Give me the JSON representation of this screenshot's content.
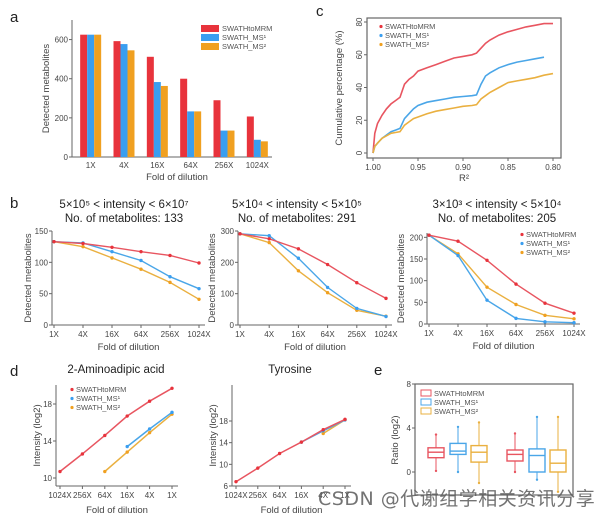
{
  "colors": {
    "swath_to_mrm": "#e8333c",
    "swath_ms1": "#3a9ef0",
    "swath_ms2": "#f0a020",
    "swath_to_mrm_line": "#e85560",
    "swath_ms1_line": "#4aa6e8",
    "swath_ms2_line": "#eab040",
    "axis": "#666666"
  },
  "series_names": [
    "SWATHtoMRM",
    "SWATH_MS¹",
    "SWATH_MS²"
  ],
  "watermark": "CSDN @代谢组学相关资讯分享",
  "chart_data": [
    {
      "panel": "a",
      "type": "bar",
      "title": "",
      "xlabel": "Fold of dilution",
      "ylabel": "Detected metabolites",
      "ylim": [
        0,
        700
      ],
      "yticks": [
        0,
        200,
        400,
        600
      ],
      "categories": [
        "1X",
        "4X",
        "16X",
        "64X",
        "256X",
        "1024X"
      ],
      "legend": "top-right",
      "series": [
        {
          "name": "SWATHtoMRM",
          "values": [
            625,
            592,
            512,
            400,
            290,
            207
          ]
        },
        {
          "name": "SWATH_MS¹",
          "values": [
            625,
            577,
            383,
            233,
            135,
            88
          ]
        },
        {
          "name": "SWATH_MS²",
          "values": [
            625,
            545,
            363,
            233,
            135,
            80
          ]
        }
      ]
    },
    {
      "panel": "c",
      "type": "line",
      "title": "",
      "xlabel": "R²",
      "ylabel": "Cumulative percentage (%)",
      "xlim": [
        1.0,
        0.8
      ],
      "ylim": [
        0,
        80
      ],
      "xticks": [
        "1.00",
        "0.95",
        "0.90",
        "0.85",
        "0.80"
      ],
      "yticks": [
        0,
        20,
        40,
        60,
        80
      ],
      "legend": "top-left",
      "series": [
        {
          "name": "SWATHtoMRM",
          "x": [
            1.0,
            0.998,
            0.995,
            0.99,
            0.985,
            0.98,
            0.975,
            0.97,
            0.965,
            0.96,
            0.955,
            0.95,
            0.94,
            0.93,
            0.92,
            0.91,
            0.9,
            0.89,
            0.885,
            0.88,
            0.875,
            0.87,
            0.86,
            0.85,
            0.84,
            0.83,
            0.82,
            0.81,
            0.8
          ],
          "y": [
            0,
            12,
            18,
            23,
            27,
            30,
            32,
            34,
            42,
            45,
            47,
            50,
            52,
            54,
            56,
            58,
            59,
            60,
            61,
            64,
            67,
            69,
            72,
            74,
            75.5,
            77,
            78,
            79,
            79
          ]
        },
        {
          "name": "SWATH_MS¹",
          "x": [
            1.0,
            0.998,
            0.995,
            0.99,
            0.985,
            0.98,
            0.975,
            0.97,
            0.965,
            0.96,
            0.955,
            0.95,
            0.94,
            0.93,
            0.92,
            0.91,
            0.9,
            0.89,
            0.885,
            0.88,
            0.875,
            0.87,
            0.86,
            0.85,
            0.84,
            0.83,
            0.82,
            0.81
          ],
          "y": [
            0,
            4,
            6,
            9,
            11,
            13,
            14,
            15,
            21,
            24,
            27,
            29,
            31,
            32,
            33,
            34,
            34.5,
            35,
            35.5,
            42,
            47,
            49,
            52,
            54,
            55.5,
            56.5,
            57.5,
            58.5
          ]
        },
        {
          "name": "SWATH_MS²",
          "x": [
            1.0,
            0.998,
            0.995,
            0.99,
            0.985,
            0.98,
            0.975,
            0.97,
            0.965,
            0.96,
            0.955,
            0.95,
            0.94,
            0.93,
            0.92,
            0.91,
            0.9,
            0.89,
            0.885,
            0.88,
            0.875,
            0.87,
            0.86,
            0.85,
            0.84,
            0.83,
            0.82,
            0.81,
            0.8
          ],
          "y": [
            0,
            4,
            6,
            9,
            10.5,
            12,
            12.5,
            13,
            17,
            19,
            21,
            22,
            24,
            25.5,
            26.5,
            27.5,
            28.5,
            29,
            29.5,
            33,
            35,
            37,
            40,
            43,
            44,
            45,
            46,
            47.5,
            48.5
          ]
        }
      ]
    },
    {
      "panel": "b1",
      "type": "line",
      "title": "5×10⁵ < intensity < 6×10⁷",
      "subtitle": "No. of metabolites: 133",
      "xlabel": "Fold of dilution",
      "ylabel": "Detected metabolites",
      "ylim": [
        0,
        150
      ],
      "yticks": [
        0,
        50,
        100,
        150
      ],
      "categories": [
        "1X",
        "4X",
        "16X",
        "64X",
        "256X",
        "1024X"
      ],
      "series": [
        {
          "name": "SWATHtoMRM",
          "values": [
            133,
            130,
            124,
            117,
            111,
            99
          ]
        },
        {
          "name": "SWATH_MS¹",
          "values": [
            133,
            131,
            117,
            103,
            77,
            58
          ]
        },
        {
          "name": "SWATH_MS²",
          "values": [
            133,
            125,
            107,
            89,
            68,
            41
          ]
        }
      ]
    },
    {
      "panel": "b2",
      "type": "line",
      "title": "5×10⁴ < intensity < 5×10⁵",
      "subtitle": "No. of metabolites: 291",
      "xlabel": "Fold of dilution",
      "ylabel": "Detected metabolites",
      "ylim": [
        0,
        300
      ],
      "yticks": [
        0,
        100,
        200,
        300
      ],
      "categories": [
        "1X",
        "4X",
        "16X",
        "64X",
        "256X",
        "1024X"
      ],
      "series": [
        {
          "name": "SWATHtoMRM",
          "values": [
            291,
            275,
            243,
            193,
            135,
            85
          ]
        },
        {
          "name": "SWATH_MS¹",
          "values": [
            291,
            285,
            213,
            120,
            53,
            27
          ]
        },
        {
          "name": "SWATH_MS²",
          "values": [
            291,
            263,
            173,
            103,
            47,
            28
          ]
        }
      ]
    },
    {
      "panel": "b3",
      "type": "line",
      "title": "3×10³ < intensity < 5×10⁴",
      "subtitle": "No. of metabolites: 205",
      "xlabel": "Fold of dilution",
      "ylabel": "Detected metabolites",
      "ylim": [
        0,
        210
      ],
      "yticks": [
        0,
        50,
        100,
        150,
        200
      ],
      "categories": [
        "1X",
        "4X",
        "16X",
        "64X",
        "256X",
        "1024X"
      ],
      "legend": "top-right",
      "series": [
        {
          "name": "SWATHtoMRM",
          "values": [
            205,
            191,
            147,
            92,
            48,
            25
          ]
        },
        {
          "name": "SWATH_MS¹",
          "values": [
            205,
            158,
            55,
            13,
            5,
            3
          ]
        },
        {
          "name": "SWATH_MS²",
          "values": [
            205,
            162,
            85,
            45,
            20,
            12
          ]
        }
      ]
    },
    {
      "panel": "d1",
      "type": "line",
      "title": "2-Aminoadipic acid",
      "xlabel": "Fold of dilution",
      "ylabel": "Intensity (log2)",
      "ylim": [
        9.5,
        20
      ],
      "yticks": [
        10,
        14,
        18
      ],
      "categories": [
        "1024X",
        "256X",
        "64X",
        "16X",
        "4X",
        "1X"
      ],
      "legend": "top-left",
      "series": [
        {
          "name": "SWATHtoMRM",
          "values": [
            10.7,
            12.6,
            14.6,
            16.7,
            18.3,
            19.7
          ]
        },
        {
          "name": "SWATH_MS¹",
          "values": [
            null,
            null,
            null,
            13.4,
            15.3,
            17.1
          ]
        },
        {
          "name": "SWATH_MS²",
          "values": [
            null,
            null,
            10.7,
            12.8,
            14.9,
            16.9
          ]
        }
      ]
    },
    {
      "panel": "d2",
      "type": "line",
      "title": "Tyrosine",
      "xlabel": "Fold of dilution",
      "ylabel": "Intensity (log2)",
      "ylim": [
        6,
        19
      ],
      "yticks": [
        6,
        10,
        14,
        18
      ],
      "categories": [
        "1024X",
        "256X",
        "64X",
        "16X",
        "4X",
        "1X"
      ],
      "series": [
        {
          "name": "SWATHtoMRM",
          "values": [
            6.8,
            9.3,
            12.0,
            14.1,
            16.4,
            18.3
          ]
        },
        {
          "name": "SWATH_MS¹",
          "values": [
            null,
            null,
            null,
            14.1,
            16.2,
            18.2
          ]
        },
        {
          "name": "SWATH_MS²",
          "values": [
            null,
            null,
            null,
            null,
            15.7,
            18.2
          ]
        }
      ]
    },
    {
      "panel": "e",
      "type": "box",
      "title": "",
      "xlabel": "",
      "ylabel": "Ratio (log2)",
      "ylim": [
        -2,
        8
      ],
      "yticks": [
        0,
        4,
        8
      ],
      "legend": "top-left",
      "groups": [
        {
          "boxes": [
            {
              "name": "SWATHtoMRM",
              "min": 0.1,
              "q1": 1.3,
              "median": 1.8,
              "q3": 2.2,
              "max": 3.4
            },
            {
              "name": "SWATH_MS¹",
              "min": 0.0,
              "q1": 1.6,
              "median": 1.9,
              "q3": 2.6,
              "max": 4.1
            },
            {
              "name": "SWATH_MS²",
              "min": -1.0,
              "q1": 0.9,
              "median": 1.8,
              "q3": 2.4,
              "max": 4.5
            }
          ]
        },
        {
          "boxes": [
            {
              "name": "SWATHtoMRM",
              "min": 0.0,
              "q1": 1.0,
              "median": 1.6,
              "q3": 2.0,
              "max": 3.5
            },
            {
              "name": "SWATH_MS¹",
              "min": -0.7,
              "q1": 0.0,
              "median": 1.5,
              "q3": 2.1,
              "max": 5.0
            },
            {
              "name": "SWATH_MS²",
              "min": -1.8,
              "q1": 0.0,
              "median": 0.8,
              "q3": 2.0,
              "max": 5.0
            }
          ]
        }
      ]
    }
  ],
  "labels": {
    "panel_a": "a",
    "panel_b": "b",
    "panel_c": "c",
    "panel_d": "d",
    "panel_e": "e"
  }
}
